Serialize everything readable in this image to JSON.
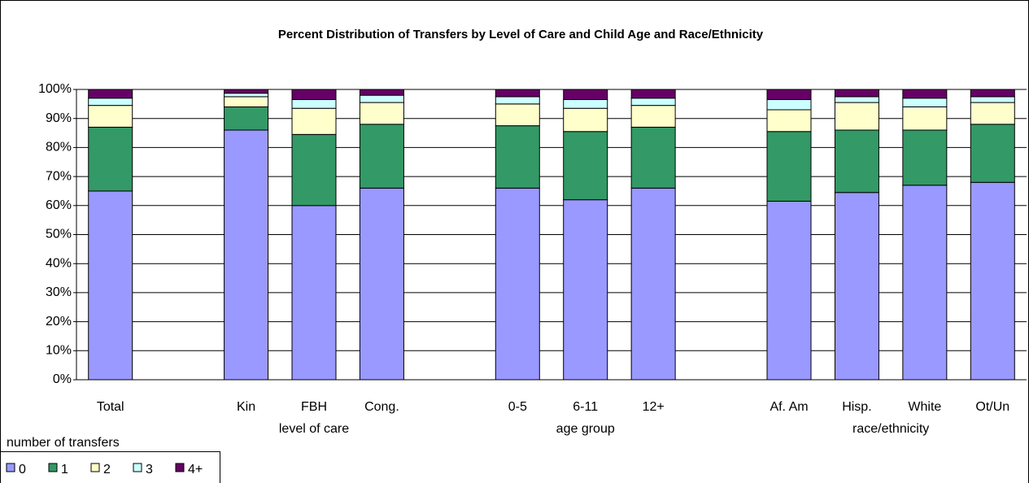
{
  "chart_data": {
    "type": "stacked_bar",
    "title": "Percent Distribution of Transfers by Level of Care and Child Age and Race/Ethnicity",
    "categories": [
      "Total",
      null,
      "Kin",
      "FBH",
      "Cong.",
      null,
      "0-5",
      "6-11",
      "12+",
      null,
      "Af. Am",
      "Hisp.",
      "White",
      "Ot/Un"
    ],
    "groups": [
      null,
      null,
      "level of care",
      "level of care",
      "level of care",
      null,
      "age group",
      "age group",
      "age group",
      null,
      "race/ethnicity",
      "race/ethnicity",
      "race/ethnicity",
      "race/ethnicity"
    ],
    "legend_title": "number of transfers",
    "series": [
      {
        "name": "0",
        "color": "#9999ff",
        "values": [
          65,
          null,
          86,
          60,
          66,
          null,
          66,
          62,
          66,
          null,
          61.5,
          64.5,
          67,
          68
        ]
      },
      {
        "name": "1",
        "color": "#339966",
        "values": [
          22,
          null,
          8,
          24.5,
          22,
          null,
          21.5,
          23.5,
          21,
          null,
          24,
          21.5,
          19,
          20
        ]
      },
      {
        "name": "2",
        "color": "#ffffcc",
        "values": [
          7.5,
          null,
          3.5,
          9,
          7.5,
          null,
          7.5,
          8,
          7.5,
          null,
          7.5,
          9.5,
          8,
          7.5
        ]
      },
      {
        "name": "3",
        "color": "#ccffff",
        "values": [
          2.5,
          null,
          1.2,
          3,
          2.5,
          null,
          2.5,
          3,
          2.5,
          null,
          3.5,
          2,
          3,
          2
        ]
      },
      {
        "name": "4+",
        "color": "#660066",
        "values": [
          3,
          null,
          1.3,
          3.5,
          2,
          null,
          2.5,
          3.5,
          3,
          null,
          3.5,
          2.5,
          3,
          2.5
        ]
      }
    ],
    "ylim": [
      0,
      100
    ],
    "yticks": [
      {
        "value": 0,
        "label": "0%"
      },
      {
        "value": 10,
        "label": "10%"
      },
      {
        "value": 20,
        "label": "20%"
      },
      {
        "value": 30,
        "label": "30%"
      },
      {
        "value": 40,
        "label": "40%"
      },
      {
        "value": 50,
        "label": "50%"
      },
      {
        "value": 60,
        "label": "60%"
      },
      {
        "value": 70,
        "label": "70%"
      },
      {
        "value": 80,
        "label": "80%"
      },
      {
        "value": 90,
        "label": "90%"
      },
      {
        "value": 100,
        "label": "100%"
      }
    ],
    "grid": true
  }
}
